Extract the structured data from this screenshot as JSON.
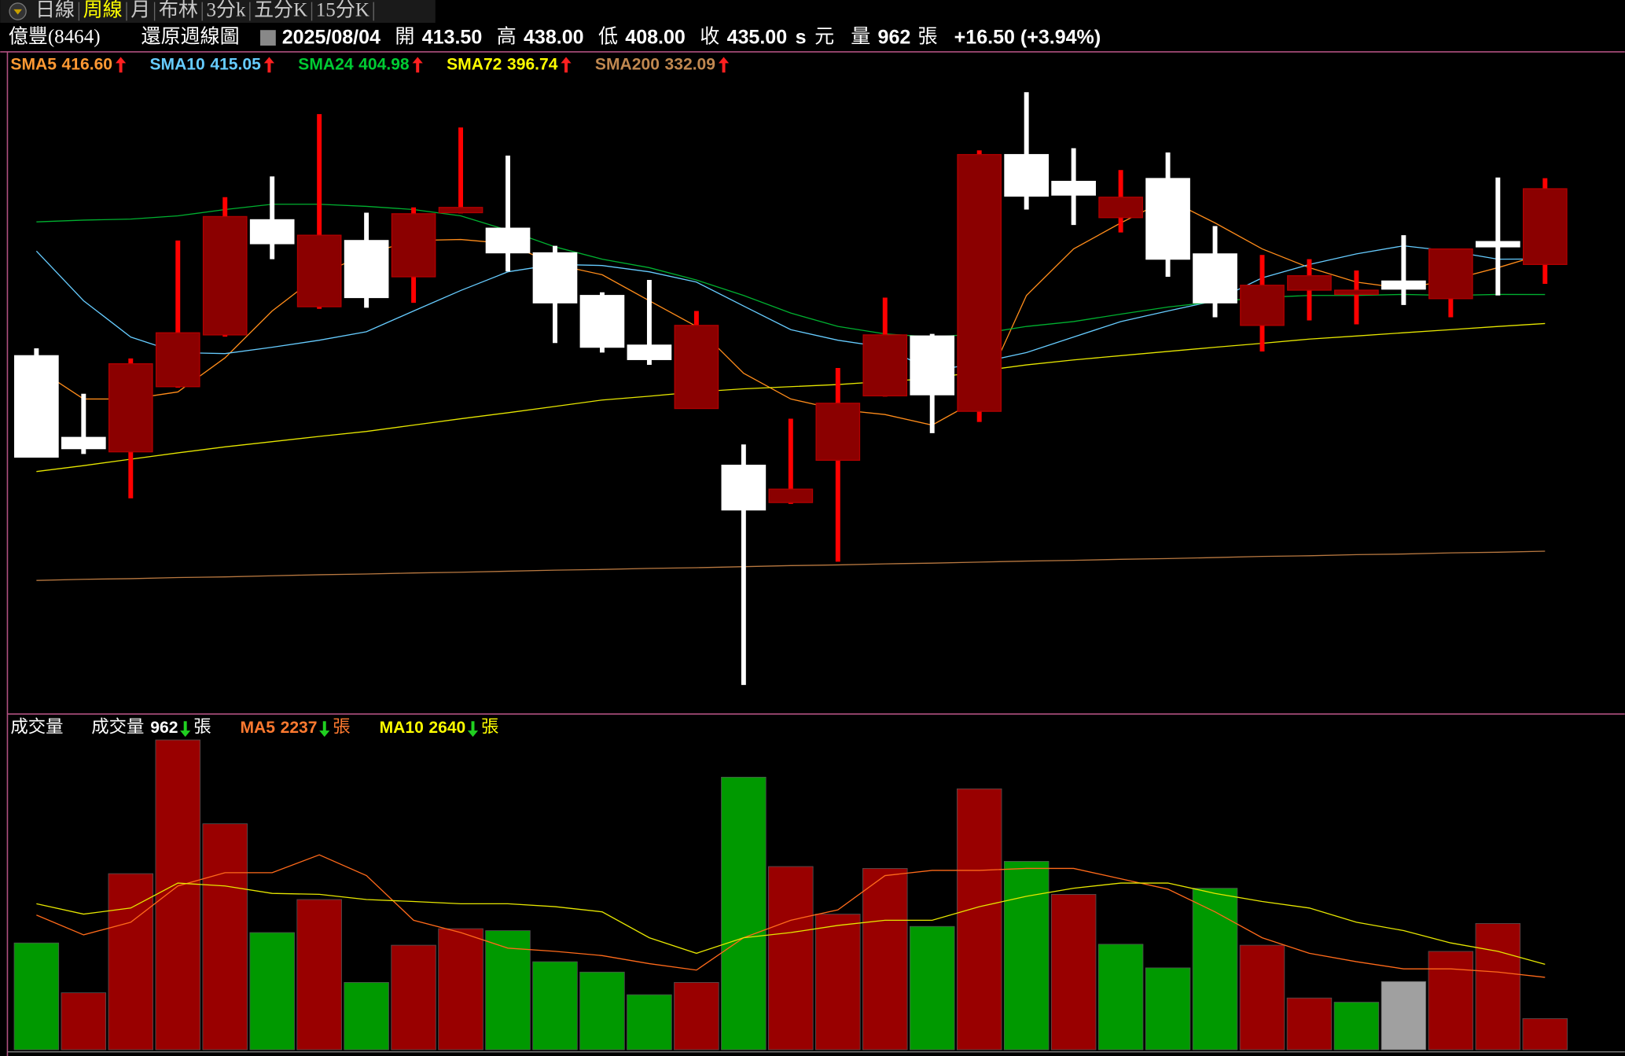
{
  "tabs": [
    "日線",
    "周線",
    "月",
    "布林",
    "3分k",
    "五分K",
    "15分K"
  ],
  "active_tab": 1,
  "header": {
    "name": "億豐(8464)",
    "chart_label": "還原週線圖",
    "date": "2025/08/04",
    "quote": [
      [
        "開",
        "413.50"
      ],
      [
        "高",
        "438.00"
      ],
      [
        "低",
        "408.00"
      ],
      [
        "收",
        "435.00"
      ]
    ],
    "suffix": "s",
    "currency": "元",
    "volume_label": "量",
    "volume": "962",
    "volume_unit": "張",
    "change": "+16.50 (+3.94%)"
  },
  "chart_data": [
    {
      "type": "candlestick",
      "up_color": "#8b0000",
      "up_wick_color": "#ff0000",
      "down_color": "#ffffff",
      "open": [
        387.6,
        364.4,
        360.3,
        378.8,
        393.5,
        426.2,
        401.5,
        420.3,
        410.0,
        428.2,
        423.8,
        416.8,
        404.7,
        390.6,
        372.6,
        356.5,
        345.9,
        357.9,
        376.2,
        393.2,
        371.8,
        444.7,
        437.1,
        426.8,
        437.9,
        416.5,
        396.2,
        406.2,
        405.0,
        408.8,
        403.8,
        420.0,
        413.5
      ],
      "high": [
        389.7,
        376.8,
        386.8,
        420.3,
        432.6,
        438.5,
        456.2,
        428.2,
        429.7,
        452.4,
        444.4,
        418.8,
        405.6,
        409.1,
        400.3,
        362.4,
        369.7,
        384.1,
        404.1,
        393.8,
        445.9,
        462.4,
        446.5,
        440.3,
        445.3,
        424.4,
        416.2,
        415.0,
        411.8,
        421.8,
        417.9,
        438.2,
        438.0
      ],
      "low": [
        358.8,
        359.7,
        347.1,
        378.5,
        393.0,
        415.0,
        400.9,
        401.2,
        402.6,
        428.0,
        411.5,
        391.2,
        388.5,
        385.0,
        372.5,
        294.1,
        345.5,
        329.1,
        376.0,
        365.6,
        368.8,
        429.1,
        424.7,
        422.6,
        410.0,
        398.5,
        388.8,
        397.6,
        396.5,
        402.0,
        398.5,
        404.7,
        408.0
      ],
      "close": [
        358.8,
        361.2,
        385.3,
        394.1,
        427.1,
        419.4,
        421.8,
        404.1,
        427.9,
        429.7,
        416.8,
        402.6,
        390.0,
        386.5,
        396.2,
        343.8,
        349.7,
        374.1,
        393.5,
        376.5,
        444.7,
        432.9,
        433.2,
        432.6,
        415.0,
        402.6,
        407.6,
        410.3,
        406.2,
        406.5,
        417.9,
        418.5,
        435.0
      ],
      "series": [
        {
          "name": "SMA5",
          "value_label": "416.60",
          "trend": "up",
          "color": "#ff8c1a",
          "legend_color": "#ff9933",
          "values": [
            384.1,
            375.3,
            375.3,
            377.3,
            387.0,
            400.3,
            410.6,
            416.5,
            420.3,
            420.6,
            419.4,
            413.5,
            410.6,
            403.2,
            395.9,
            382.6,
            375.3,
            372.3,
            370.9,
            367.9,
            375.3,
            404.7,
            417.9,
            425.3,
            432.0,
            425.3,
            417.9,
            412.6,
            408.5,
            406.7,
            409.1,
            412.6,
            416.6
          ]
        },
        {
          "name": "SMA10",
          "value_label": "415.05",
          "trend": "up",
          "color": "#66ccff",
          "legend_color": "#66ccff",
          "values": [
            417.3,
            403.2,
            392.9,
            388.5,
            388.2,
            390.0,
            392.0,
            394.4,
            400.3,
            406.1,
            411.4,
            413.5,
            413.2,
            411.4,
            408.5,
            401.7,
            395.0,
            392.0,
            390.0,
            383.2,
            385.6,
            388.5,
            392.9,
            397.3,
            400.3,
            403.2,
            409.7,
            413.5,
            416.5,
            418.8,
            417.3,
            415.0,
            415.05
          ]
        },
        {
          "name": "SMA24",
          "value_label": "404.98",
          "trend": "up",
          "color": "#00b030",
          "legend_color": "#00cc33",
          "values": [
            425.6,
            426.1,
            426.4,
            427.3,
            429.1,
            430.6,
            430.6,
            430.0,
            429.1,
            427.3,
            423.2,
            418.5,
            415.0,
            412.6,
            409.1,
            404.7,
            399.7,
            395.9,
            393.8,
            392.9,
            393.8,
            395.9,
            397.3,
            399.4,
            401.4,
            402.9,
            404.1,
            404.7,
            404.7,
            405.0,
            404.7,
            405.0,
            404.98
          ]
        },
        {
          "name": "SMA72",
          "value_label": "396.74",
          "trend": "up",
          "color": "#e6e600",
          "legend_color": "#ffff00",
          "values": [
            354.7,
            356.4,
            358.2,
            360.0,
            361.7,
            363.2,
            364.7,
            366.1,
            367.9,
            369.7,
            371.4,
            373.2,
            375.0,
            376.1,
            377.3,
            378.2,
            378.8,
            379.4,
            380.3,
            381.1,
            383.2,
            385.0,
            386.4,
            387.6,
            388.8,
            390.0,
            391.1,
            392.3,
            393.2,
            394.1,
            395.0,
            395.9,
            396.74
          ]
        },
        {
          "name": "SMA200",
          "value_label": "332.09",
          "trend": "up",
          "color": "#b87840",
          "legend_color": "#c08850",
          "values": [
            323.8,
            324.1,
            324.3,
            324.6,
            324.8,
            325.1,
            325.4,
            325.6,
            325.9,
            326.1,
            326.4,
            326.7,
            326.9,
            327.2,
            327.4,
            327.7,
            328.0,
            328.2,
            328.5,
            328.7,
            329.0,
            329.3,
            329.5,
            329.8,
            330.0,
            330.3,
            330.6,
            330.8,
            331.1,
            331.3,
            331.6,
            331.8,
            332.09
          ]
        }
      ]
    },
    {
      "type": "volume",
      "title": "成交量",
      "current": {
        "name": "成交量",
        "value_label": "962",
        "trend": "down",
        "unit": "張"
      },
      "values": [
        3300,
        1760,
        5440,
        9570,
        6980,
        3620,
        4640,
        2080,
        3230,
        3740,
        3680,
        2720,
        2400,
        1700,
        2080,
        8420,
        5660,
        4190,
        5600,
        3810,
        8060,
        5820,
        4800,
        3260,
        2530,
        4990,
        3230,
        1600,
        1470,
        2110,
        3040,
        3900,
        962
      ],
      "colors": [
        "#009900",
        "#990000",
        "#990000",
        "#990000",
        "#990000",
        "#009900",
        "#990000",
        "#009900",
        "#990000",
        "#990000",
        "#009900",
        "#009900",
        "#009900",
        "#009900",
        "#990000",
        "#009900",
        "#990000",
        "#990000",
        "#990000",
        "#009900",
        "#990000",
        "#009900",
        "#990000",
        "#009900",
        "#009900",
        "#009900",
        "#990000",
        "#990000",
        "#009900",
        "#a0a0a0",
        "#990000",
        "#990000",
        "#990000"
      ],
      "series": [
        {
          "name": "MA5",
          "value_label": "2237",
          "trend": "down",
          "unit": "張",
          "color": "#ff6a1a",
          "legend_color": "#ff7a30",
          "values": [
            4160,
            3550,
            3940,
            5060,
            5470,
            5470,
            6020,
            5380,
            4000,
            3620,
            3140,
            3040,
            2910,
            2660,
            2460,
            3460,
            4000,
            4320,
            5380,
            5540,
            5540,
            5600,
            5600,
            5280,
            4960,
            4260,
            3460,
            2980,
            2720,
            2500,
            2500,
            2400,
            2237
          ]
        },
        {
          "name": "MA10",
          "value_label": "2640",
          "trend": "down",
          "unit": "張",
          "color": "#e6e600",
          "legend_color": "#ffff00",
          "values": [
            4510,
            4190,
            4380,
            5150,
            5060,
            4830,
            4800,
            4640,
            4580,
            4510,
            4510,
            4420,
            4260,
            3460,
            2980,
            3460,
            3620,
            3840,
            4000,
            4000,
            4420,
            4740,
            4990,
            5150,
            5150,
            4830,
            4580,
            4380,
            3940,
            3680,
            3300,
            3040,
            2640
          ]
        }
      ]
    }
  ]
}
